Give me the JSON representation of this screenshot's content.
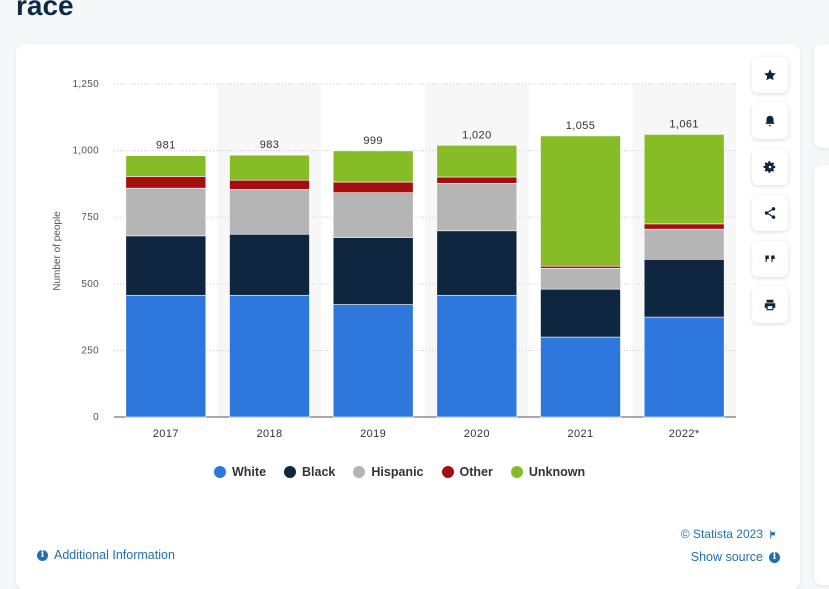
{
  "page": {
    "title": "race"
  },
  "colors": {
    "white": "#2e77dd",
    "black": "#0f2640",
    "hispanic": "#b5b5b5",
    "other": "#a30f0f",
    "unknown": "#86bc25",
    "link": "#1f6fb5"
  },
  "chart_data": {
    "type": "bar",
    "stacked": true,
    "title": "",
    "xlabel": "",
    "ylabel": "Number of people",
    "ylim": [
      0,
      1250
    ],
    "yticks": [
      0,
      250,
      500,
      750,
      1000,
      1250
    ],
    "ytick_labels": [
      "0",
      "250",
      "500",
      "750",
      "1,000",
      "1,250"
    ],
    "categories": [
      "2017",
      "2018",
      "2019",
      "2020",
      "2021",
      "2022*"
    ],
    "totals": [
      981,
      983,
      999,
      1020,
      1055,
      1061
    ],
    "total_labels": [
      "981",
      "983",
      "999",
      "1,020",
      "1,055",
      "1,061"
    ],
    "shaded_categories": [
      1,
      3,
      5
    ],
    "series": [
      {
        "name": "White",
        "key": "white",
        "values": [
          457,
          457,
          422,
          457,
          300,
          375
        ]
      },
      {
        "name": "Black",
        "key": "black",
        "values": [
          223,
          229,
          252,
          242,
          180,
          217
        ]
      },
      {
        "name": "Hispanic",
        "key": "hispanic",
        "values": [
          179,
          168,
          168,
          178,
          78,
          113
        ]
      },
      {
        "name": "Other",
        "key": "other",
        "values": [
          44,
          35,
          40,
          24,
          8,
          20
        ]
      },
      {
        "name": "Unknown",
        "key": "unknown",
        "values": [
          78,
          94,
          117,
          119,
          489,
          336
        ]
      }
    ],
    "legend_position": "bottom",
    "grid": true
  },
  "legend": {
    "items": [
      {
        "label": "White",
        "key": "white"
      },
      {
        "label": "Black",
        "key": "black"
      },
      {
        "label": "Hispanic",
        "key": "hispanic"
      },
      {
        "label": "Other",
        "key": "other"
      },
      {
        "label": "Unknown",
        "key": "unknown"
      }
    ]
  },
  "toolbar": {
    "buttons": [
      {
        "name": "favorite-button",
        "icon": "star-icon"
      },
      {
        "name": "notification-button",
        "icon": "bell-icon"
      },
      {
        "name": "settings-button",
        "icon": "gear-icon"
      },
      {
        "name": "share-button",
        "icon": "share-icon"
      },
      {
        "name": "cite-button",
        "icon": "quote-icon"
      },
      {
        "name": "print-button",
        "icon": "print-icon"
      }
    ]
  },
  "footer": {
    "additional_info": "Additional Information",
    "copyright": "© Statista 2023",
    "show_source": "Show source"
  }
}
